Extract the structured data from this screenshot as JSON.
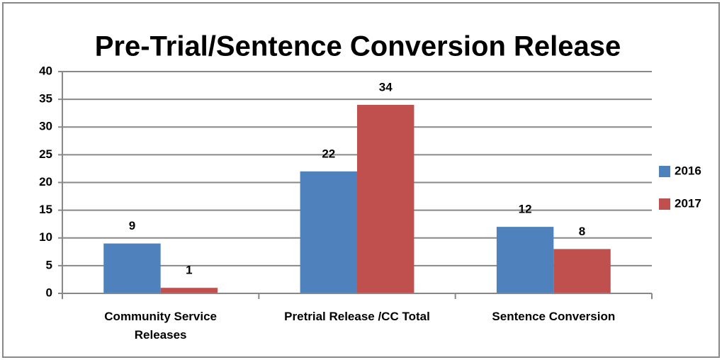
{
  "chart_data": {
    "type": "bar",
    "title": "Pre-Trial/Sentence Conversion Release",
    "categories": [
      "Community Service Releases",
      "Pretrial Release /CC Total",
      "Sentence Conversion"
    ],
    "series": [
      {
        "name": "2016",
        "color": "#4f81bd",
        "values": [
          9,
          22,
          12
        ]
      },
      {
        "name": "2017",
        "color": "#c0504d",
        "values": [
          1,
          34,
          8
        ]
      }
    ],
    "ylim": [
      0,
      40
    ],
    "yticks": [
      0,
      5,
      10,
      15,
      20,
      25,
      30,
      35,
      40
    ],
    "grid": true,
    "legend": "right"
  }
}
